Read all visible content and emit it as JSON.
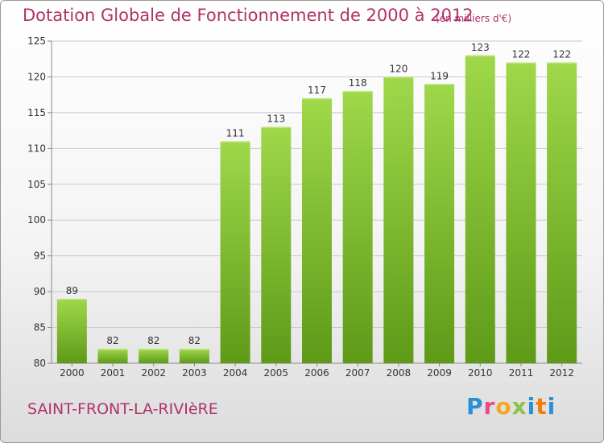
{
  "header": {
    "title": "Dotation Globale de Fonctionnement de 2000 à 2012",
    "subtitle": "(en milliers d'€)"
  },
  "footer": {
    "commune": "SAINT-FRONT-LA-RIVIèRE",
    "logo": "Proxiti"
  },
  "chart_data": {
    "type": "bar",
    "title": "Dotation Globale de Fonctionnement de 2000 à 2012",
    "subtitle": "(en milliers d'€)",
    "categories": [
      "2000",
      "2001",
      "2002",
      "2003",
      "2004",
      "2005",
      "2006",
      "2007",
      "2008",
      "2009",
      "2010",
      "2011",
      "2012"
    ],
    "values": [
      89,
      82,
      82,
      82,
      111,
      113,
      117,
      118,
      120,
      119,
      123,
      122,
      122
    ],
    "ylim": [
      80,
      125
    ],
    "yticks": [
      80,
      85,
      90,
      95,
      100,
      105,
      110,
      115,
      120,
      125
    ],
    "grid": true,
    "bar_color": "#7cbf2e",
    "bar_color_light": "#9fd84a",
    "bar_color_dark": "#5e9a18",
    "title_color": "#b0336a"
  }
}
